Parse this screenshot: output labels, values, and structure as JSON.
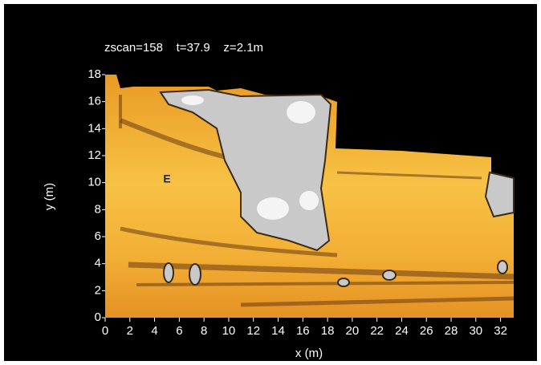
{
  "chart_data": {
    "type": "map",
    "title": "zscan=158    t=37.9    z=2.1m",
    "x_label": "x (m)",
    "y_label": "y (m)",
    "annotation": "E",
    "xlim": [
      0,
      33
    ],
    "ylim": [
      0,
      18
    ],
    "xticks": [
      0,
      2,
      4,
      6,
      8,
      10,
      12,
      14,
      16,
      18,
      20,
      22,
      24,
      26,
      28,
      30,
      32
    ],
    "yticks": [
      0,
      2,
      4,
      6,
      8,
      10,
      12,
      14,
      16,
      18
    ]
  }
}
